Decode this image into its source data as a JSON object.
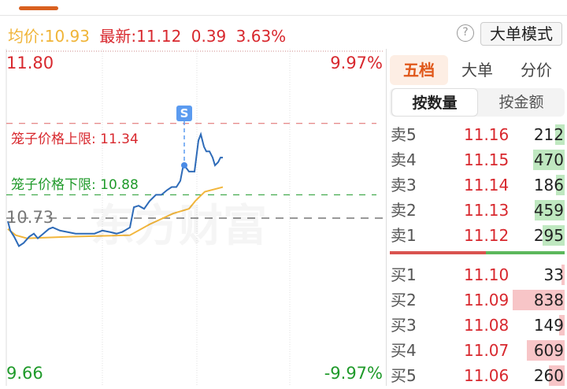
{
  "header": {
    "avg_label": "均价:",
    "avg_value": "10.93",
    "latest_label": "最新:",
    "latest_value": "11.12",
    "change": "0.39",
    "change_pct": "3.63%",
    "help_icon": "question-circle-icon",
    "mode_button": "大单模式"
  },
  "chart": {
    "price_high": "11.80",
    "pct_high": "9.97%",
    "price_low": "9.66",
    "pct_low": "-9.97%",
    "prev_close": "10.73",
    "upper_limit_label": "笼子价格上限:",
    "upper_limit": "11.34",
    "lower_limit_label": "笼子价格下限:",
    "lower_limit": "10.88",
    "watermark": "东方财富",
    "marker_label": "S",
    "colors": {
      "price": "#2e6bb8",
      "avg": "#f2b63c",
      "up": "#d8282e",
      "down": "#1f9a2a"
    },
    "price_series": [
      [
        1,
        10.71
      ],
      [
        2.5,
        10.65
      ],
      [
        5,
        10.61
      ],
      [
        8,
        10.55
      ],
      [
        11,
        10.57
      ],
      [
        14.5,
        10.61
      ],
      [
        17.5,
        10.63
      ],
      [
        20,
        10.6
      ],
      [
        23.5,
        10.63
      ],
      [
        27,
        10.66
      ],
      [
        29.5,
        10.67
      ],
      [
        34,
        10.65
      ],
      [
        39,
        10.64
      ],
      [
        44,
        10.63
      ],
      [
        51,
        10.63
      ],
      [
        56,
        10.63
      ],
      [
        61,
        10.65
      ],
      [
        66,
        10.64
      ],
      [
        70,
        10.63
      ],
      [
        73.5,
        10.64
      ],
      [
        78.5,
        10.67
      ],
      [
        81,
        10.8
      ],
      [
        84,
        10.81
      ],
      [
        87.5,
        10.79
      ],
      [
        91,
        10.84
      ],
      [
        95,
        10.88
      ],
      [
        98.5,
        10.88
      ],
      [
        102,
        10.91
      ],
      [
        105,
        10.93
      ],
      [
        108,
        10.93
      ],
      [
        110.5,
        10.97
      ],
      [
        112,
        11.05
      ],
      [
        113,
        11.07
      ],
      [
        116,
        11.03
      ],
      [
        119.5,
        11.03
      ],
      [
        122,
        11.23
      ],
      [
        123.5,
        11.27
      ],
      [
        125.5,
        11.19
      ],
      [
        127,
        11.16
      ],
      [
        129,
        11.16
      ],
      [
        131,
        11.12
      ],
      [
        132.5,
        11.07
      ],
      [
        134.5,
        11.09
      ],
      [
        136,
        11.12
      ],
      [
        137.5,
        11.12
      ]
    ],
    "avg_series": [
      [
        1,
        10.66
      ],
      [
        6,
        10.62
      ],
      [
        13,
        10.6
      ],
      [
        40,
        10.61
      ],
      [
        78.5,
        10.62
      ],
      [
        91,
        10.69
      ],
      [
        106,
        10.76
      ],
      [
        116,
        10.79
      ],
      [
        120,
        10.84
      ],
      [
        126,
        10.9
      ],
      [
        137.5,
        10.93
      ]
    ],
    "marker_time": 113
  },
  "panel": {
    "tabs": [
      {
        "label": "五档",
        "active": true
      },
      {
        "label": "大单"
      },
      {
        "label": "分价"
      }
    ],
    "segments": [
      {
        "label": "按数量",
        "active": true
      },
      {
        "label": "按金额"
      }
    ],
    "sell": [
      {
        "name": "卖5",
        "price": "11.16",
        "vol": "212",
        "fill": 0.18
      },
      {
        "name": "卖4",
        "price": "11.15",
        "vol": "470",
        "fill": 0.6
      },
      {
        "name": "卖3",
        "price": "11.14",
        "vol": "186",
        "fill": 0.17
      },
      {
        "name": "卖2",
        "price": "11.13",
        "vol": "459",
        "fill": 0.58
      },
      {
        "name": "卖1",
        "price": "11.12",
        "vol": "295",
        "fill": 0.42
      }
    ],
    "buy": [
      {
        "name": "买1",
        "price": "11.10",
        "vol": "33",
        "fill": 0.03
      },
      {
        "name": "买2",
        "price": "11.09",
        "vol": "838",
        "fill": 1
      },
      {
        "name": "买3",
        "price": "11.08",
        "vol": "149",
        "fill": 0.1
      },
      {
        "name": "买4",
        "price": "11.07",
        "vol": "609",
        "fill": 0.73
      },
      {
        "name": "买5",
        "price": "11.06",
        "vol": "260",
        "fill": 0.3
      }
    ],
    "buy_ratio": 0.55
  }
}
